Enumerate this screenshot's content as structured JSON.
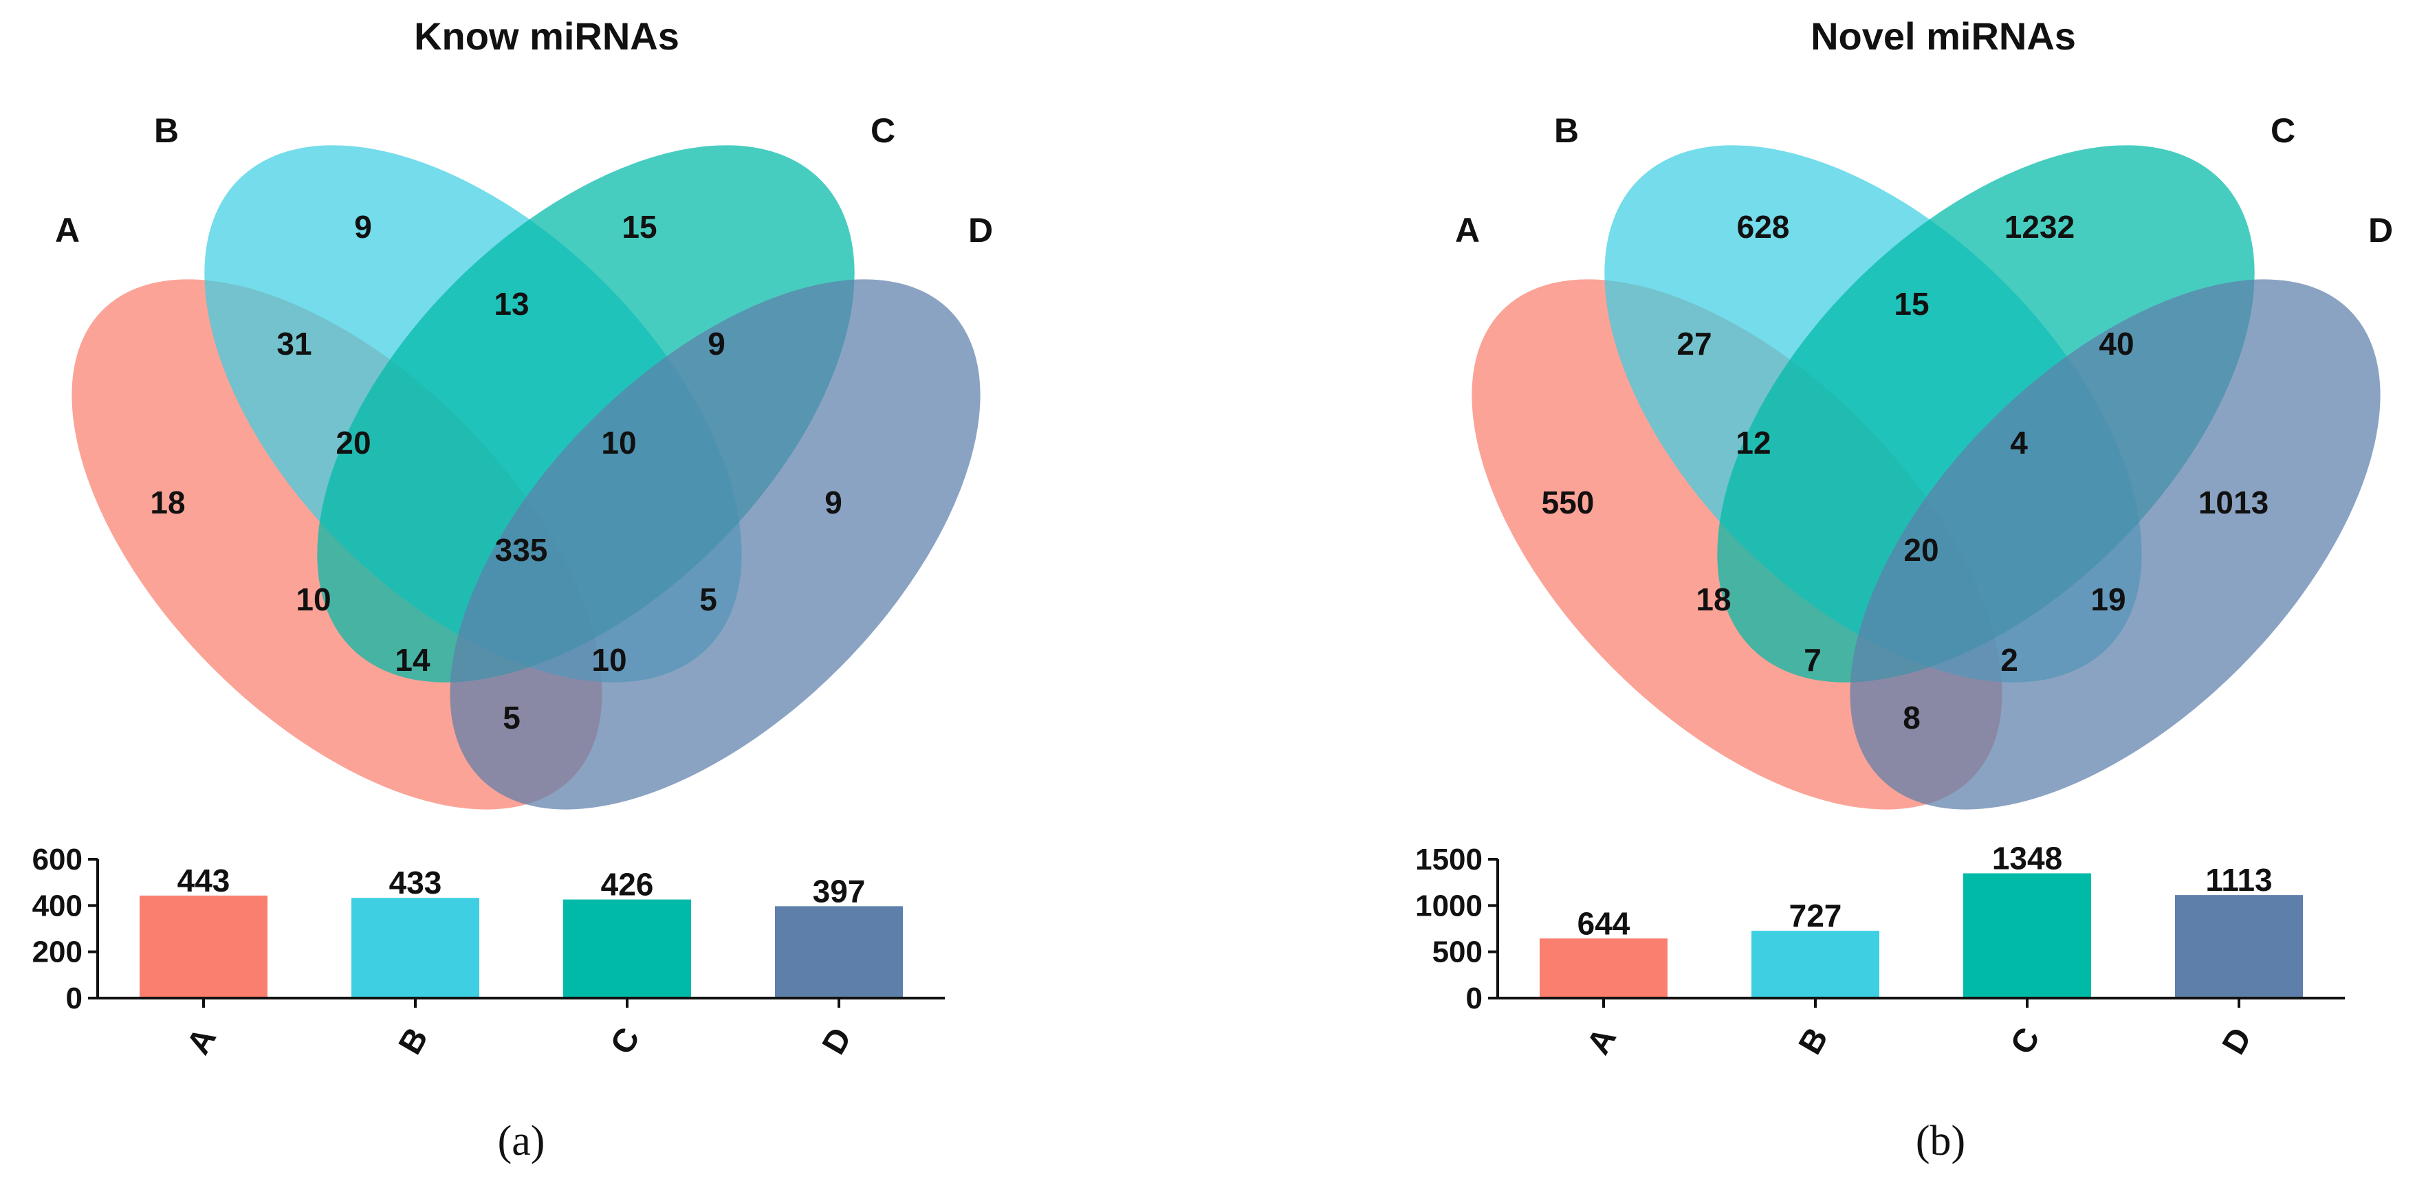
{
  "colors": {
    "A": "#FA7F6F",
    "B": "#3ECFE2",
    "C": "#00BAA8",
    "D": "#5E7FAA"
  },
  "chart_data": [
    {
      "type": "venn",
      "title": "Know miRNAs",
      "sets": [
        "A",
        "B",
        "C",
        "D"
      ],
      "regions": [
        {
          "sets": "A",
          "value": 18
        },
        {
          "sets": "B",
          "value": 9
        },
        {
          "sets": "C",
          "value": 15
        },
        {
          "sets": "D",
          "value": 9
        },
        {
          "sets": "AB",
          "value": 31
        },
        {
          "sets": "BC",
          "value": 13
        },
        {
          "sets": "CD",
          "value": 9
        },
        {
          "sets": "AC",
          "value": 10
        },
        {
          "sets": "BD",
          "value": 5
        },
        {
          "sets": "AD",
          "value": 5
        },
        {
          "sets": "ABC",
          "value": 20
        },
        {
          "sets": "BCD",
          "value": 10
        },
        {
          "sets": "ACD",
          "value": 14
        },
        {
          "sets": "ABD",
          "value": 10
        },
        {
          "sets": "ABCD",
          "value": 335
        }
      ],
      "bar": {
        "type": "bar",
        "categories": [
          "A",
          "B",
          "C",
          "D"
        ],
        "values": [
          443,
          433,
          426,
          397
        ],
        "ylim": [
          0,
          600
        ],
        "yticks": [
          0,
          200,
          400,
          600
        ]
      },
      "caption": "(a)"
    },
    {
      "type": "venn",
      "title": "Novel miRNAs",
      "sets": [
        "A",
        "B",
        "C",
        "D"
      ],
      "regions": [
        {
          "sets": "A",
          "value": 550
        },
        {
          "sets": "B",
          "value": 628
        },
        {
          "sets": "C",
          "value": 1232
        },
        {
          "sets": "D",
          "value": 1013
        },
        {
          "sets": "AB",
          "value": 27
        },
        {
          "sets": "BC",
          "value": 15
        },
        {
          "sets": "CD",
          "value": 40
        },
        {
          "sets": "AC",
          "value": 18
        },
        {
          "sets": "BD",
          "value": 19
        },
        {
          "sets": "AD",
          "value": 8
        },
        {
          "sets": "ABC",
          "value": 12
        },
        {
          "sets": "BCD",
          "value": 4
        },
        {
          "sets": "ACD",
          "value": 7
        },
        {
          "sets": "ABD",
          "value": 2
        },
        {
          "sets": "ABCD",
          "value": 20
        }
      ],
      "bar": {
        "type": "bar",
        "categories": [
          "A",
          "B",
          "C",
          "D"
        ],
        "values": [
          644,
          727,
          1348,
          1113
        ],
        "ylim": [
          0,
          1500
        ],
        "yticks": [
          0,
          500,
          1000,
          1500
        ]
      },
      "caption": "(b)"
    }
  ]
}
